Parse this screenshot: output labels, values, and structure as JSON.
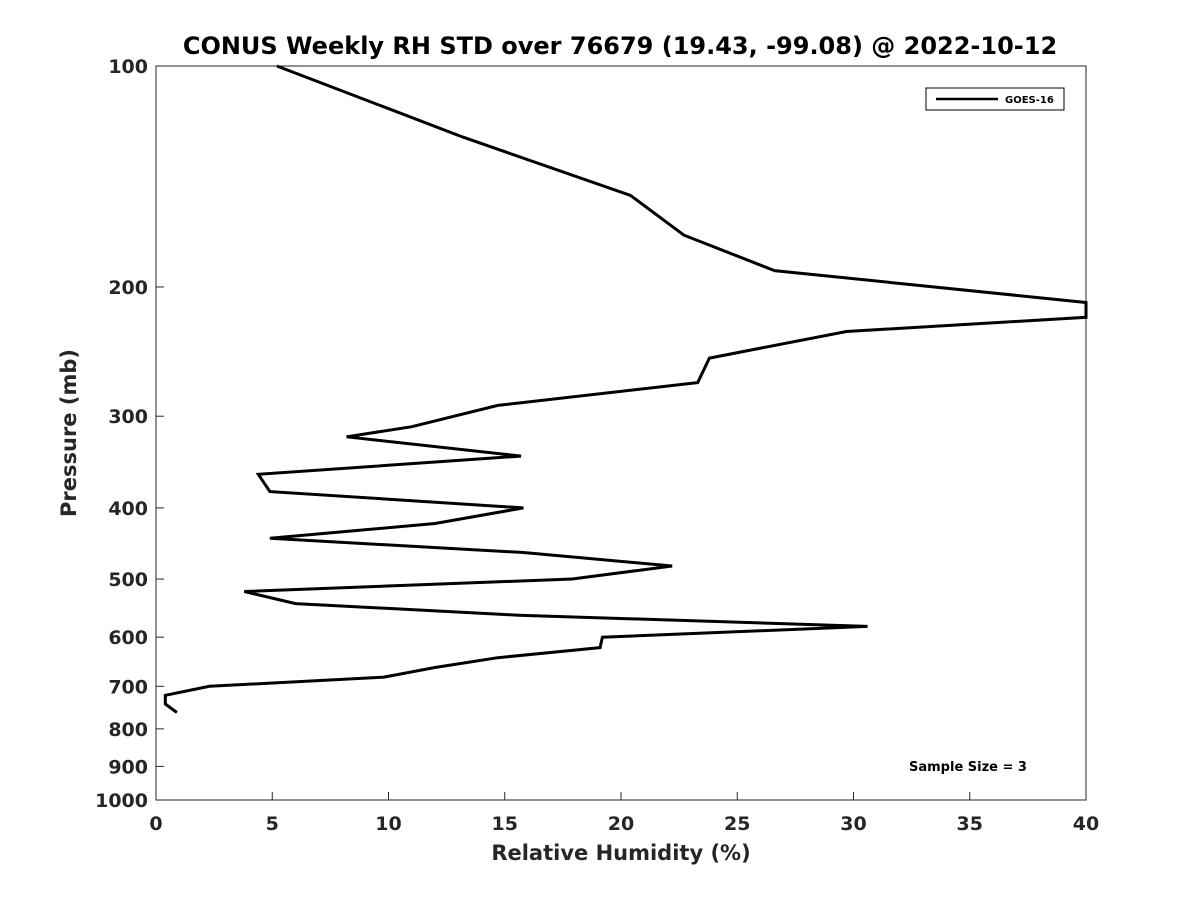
{
  "chart_data": {
    "type": "line",
    "title": "CONUS Weekly RH STD over 76679 (19.43, -99.08) @ 2022-10-12",
    "xlabel": "Relative Humidity (%)",
    "ylabel": "Pressure (mb)",
    "xlim": [
      0,
      40
    ],
    "ylim": [
      100,
      1000
    ],
    "yscale": "log",
    "y_reversed": true,
    "xticks": [
      0,
      5,
      10,
      15,
      20,
      25,
      30,
      35,
      40
    ],
    "yticks": [
      100,
      200,
      300,
      400,
      500,
      600,
      700,
      800,
      900,
      1000
    ],
    "grid": false,
    "legend_position": "top-right",
    "annotation": "Sample Size = 3",
    "series": [
      {
        "name": "GOES-16",
        "color": "#000000",
        "points": [
          [
            5.2,
            100
          ],
          [
            13.2,
            125
          ],
          [
            20.4,
            150
          ],
          [
            22.7,
            170
          ],
          [
            26.6,
            190
          ],
          [
            40.0,
            210
          ],
          [
            40.0,
            220
          ],
          [
            29.7,
            230
          ],
          [
            23.8,
            250
          ],
          [
            23.3,
            270
          ],
          [
            14.7,
            290
          ],
          [
            11.0,
            310
          ],
          [
            8.2,
            320
          ],
          [
            15.7,
            340
          ],
          [
            4.4,
            360
          ],
          [
            4.9,
            380
          ],
          [
            15.8,
            400
          ],
          [
            12.0,
            420
          ],
          [
            4.9,
            440
          ],
          [
            15.8,
            460
          ],
          [
            22.2,
            480
          ],
          [
            17.9,
            500
          ],
          [
            3.8,
            520
          ],
          [
            6.0,
            540
          ],
          [
            15.6,
            560
          ],
          [
            30.6,
            580
          ],
          [
            19.2,
            600
          ],
          [
            19.1,
            620
          ],
          [
            14.7,
            640
          ],
          [
            12.0,
            660
          ],
          [
            9.8,
            680
          ],
          [
            2.3,
            700
          ],
          [
            0.4,
            720
          ],
          [
            0.4,
            740
          ],
          [
            0.9,
            760
          ]
        ]
      }
    ]
  }
}
